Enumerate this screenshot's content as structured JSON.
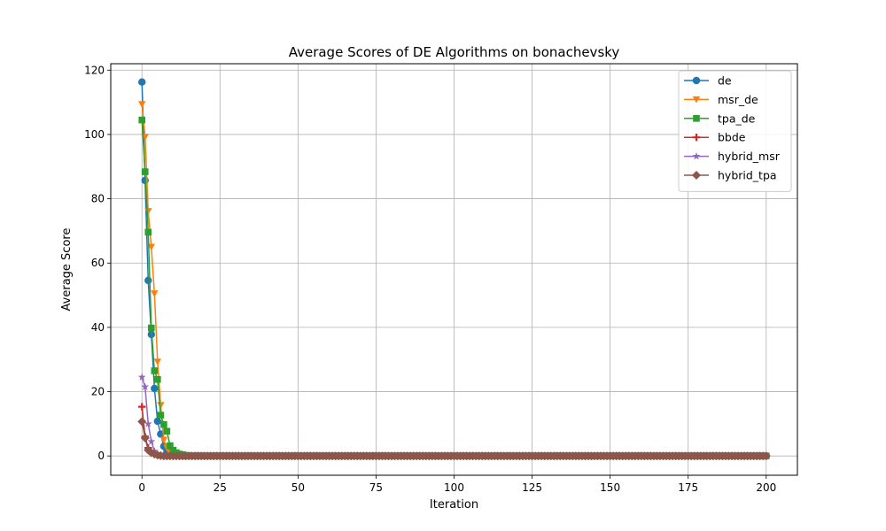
{
  "chart_data": {
    "type": "line",
    "title": "Average Scores of DE Algorithms on bonachevsky",
    "xlabel": "Iteration",
    "ylabel": "Average Score",
    "xlim": [
      -10,
      210
    ],
    "ylim": [
      -6,
      122
    ],
    "xticks": [
      0,
      25,
      50,
      75,
      100,
      125,
      150,
      175,
      200
    ],
    "yticks": [
      0,
      20,
      40,
      60,
      80,
      100,
      120
    ],
    "grid": true,
    "legend_position": "top-right",
    "x_max": 200,
    "series": [
      {
        "name": "de",
        "color": "#1f77b4",
        "marker": "circle",
        "values": [
          116.3,
          85.7,
          54.6,
          37.8,
          21.0,
          10.8,
          6.8,
          3.0,
          1.5,
          0.8,
          0.4,
          0.2,
          0.1
        ]
      },
      {
        "name": "msr_de",
        "color": "#ff7f0e",
        "marker": "triangle-down",
        "values": [
          109.4,
          99.2,
          76.1,
          65.0,
          50.5,
          29.3,
          15.8,
          5.0,
          2.5,
          1.0,
          0.5,
          0.2,
          0.1
        ]
      },
      {
        "name": "tpa_de",
        "color": "#2ca02c",
        "marker": "square",
        "values": [
          104.5,
          88.4,
          69.6,
          39.8,
          26.5,
          23.8,
          12.7,
          9.8,
          7.7,
          3.2,
          1.8,
          1.0,
          0.6,
          0.4,
          0.2,
          0.1
        ]
      },
      {
        "name": "bbde",
        "color": "#d62728",
        "marker": "plus",
        "values": [
          15.3,
          6.0,
          2.5,
          1.0,
          0.5,
          0.2,
          0.1
        ]
      },
      {
        "name": "hybrid_msr",
        "color": "#9467bd",
        "marker": "star",
        "values": [
          24.5,
          21.5,
          10.0,
          4.5,
          1.5,
          0.6,
          0.2,
          0.1
        ]
      },
      {
        "name": "hybrid_tpa",
        "color": "#8c564b",
        "marker": "diamond",
        "values": [
          10.7,
          5.6,
          1.8,
          1.0,
          0.6,
          0.3,
          0.1
        ]
      }
    ]
  }
}
